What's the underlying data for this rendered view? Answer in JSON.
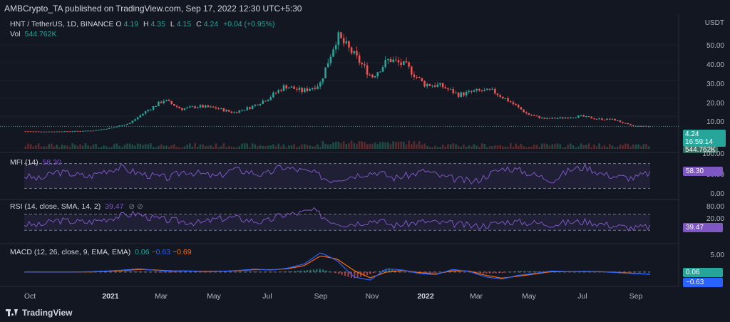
{
  "header": {
    "published": "AMBCrypto_TA published on TradingView.com, Sep 17, 2022 12:30 UTC+5:30"
  },
  "main_legend": {
    "symbol": "HNT / TetherUS, 1D, BINANCE",
    "o_label": "O",
    "o_value": "4.19",
    "h_label": "H",
    "h_value": "4.35",
    "l_label": "L",
    "l_value": "4.15",
    "c_label": "C",
    "c_value": "4.24",
    "change": "+0.04 (+0.95%)",
    "vol_label": "Vol",
    "vol_value": "544.762K"
  },
  "currency": "USDT",
  "price_axis": [
    "50.00",
    "40.00",
    "30.00",
    "20.00",
    "10.00"
  ],
  "price_tag": {
    "price": "4.24",
    "countdown": "16:59:14",
    "volume": "544.762K"
  },
  "mfi": {
    "label": "MFI (14)",
    "value": "58.30",
    "axis": [
      "100.00",
      "50.00",
      "0.00"
    ],
    "tag": "58.30"
  },
  "rsi": {
    "label": "RSI (14, close, SMA, 14, 2)",
    "value": "39.47",
    "icons": "⊘ ⊘",
    "axis": [
      "80.00",
      "20.00"
    ],
    "tag": "39.47"
  },
  "macd": {
    "label": "MACD (12, 26, close, 9, EMA, EMA)",
    "hist": "0.06",
    "macd": "−0.63",
    "signal": "−0.69",
    "axis": [
      "5.00",
      "0.00"
    ],
    "tag_hist": "0.06",
    "tag_macd": "−0.63"
  },
  "x_axis": [
    "Oct",
    "2021",
    "Mar",
    "May",
    "Jul",
    "Sep",
    "Nov",
    "2022",
    "Mar",
    "May",
    "Jul",
    "Sep"
  ],
  "footer": {
    "brand": "TradingView"
  },
  "colors": {
    "bg": "#131722",
    "up": "#26a69a",
    "down": "#ef5350",
    "mfi": "#7e57c2",
    "macd": "#2962ff",
    "signal": "#ff6d00"
  },
  "chart_data": [
    {
      "type": "line",
      "title": "HNT / TetherUS, 1D, BINANCE",
      "ylabel": "USDT",
      "ylim": [
        0,
        60
      ],
      "x": [
        "2020-09-20",
        "2020-10-15",
        "2020-11-15",
        "2020-12-15",
        "2021-01-15",
        "2021-02-15",
        "2021-03-10",
        "2021-04-05",
        "2021-04-25",
        "2021-05-15",
        "2021-06-05",
        "2021-07-01",
        "2021-07-25",
        "2021-08-20",
        "2021-09-10",
        "2021-09-30",
        "2021-10-20",
        "2021-11-01",
        "2021-11-10",
        "2021-11-25",
        "2021-12-10",
        "2021-12-25",
        "2022-01-10",
        "2022-01-25",
        "2022-02-10",
        "2022-03-01",
        "2022-03-25",
        "2022-04-15",
        "2022-05-01",
        "2022-05-15",
        "2022-06-01",
        "2022-06-20",
        "2022-07-10",
        "2022-07-30",
        "2022-08-20",
        "2022-09-05",
        "2022-09-17"
      ],
      "series": [
        {
          "values": [
            1.5,
            1.3,
            1.4,
            1.6,
            2.0,
            3.5,
            6.0,
            13.0,
            19.0,
            14.0,
            15.5,
            14.5,
            12.0,
            15.0,
            20.0,
            27.0,
            24.0,
            28.0,
            55.0,
            44.0,
            32.0,
            42.0,
            38.0,
            28.0,
            27.0,
            22.0,
            24.0,
            24.0,
            18.0,
            11.0,
            8.5,
            9.0,
            10.0,
            8.5,
            8.0,
            4.5,
            4.24
          ]
        }
      ]
    },
    {
      "type": "line",
      "title": "MFI (14)",
      "ylim": [
        0,
        100
      ],
      "series": [
        {
          "name": "MFI (14)",
          "values": [
            50,
            42,
            60,
            55,
            48,
            63,
            70,
            58,
            50,
            45,
            62,
            55,
            48,
            66,
            60,
            52,
            72,
            65,
            58,
            40,
            47,
            55,
            60,
            45,
            52,
            63,
            48,
            42,
            35,
            55,
            70,
            62,
            50,
            40,
            65,
            72,
            55,
            48,
            45,
            58.3
          ]
        }
      ]
    },
    {
      "type": "line",
      "title": "RSI (14, close, SMA, 14, 2)",
      "ylim": [
        0,
        100
      ],
      "series": [
        {
          "name": "RSI (14, close, SMA, 14, 2)",
          "values": [
            45,
            42,
            55,
            52,
            50,
            58,
            66,
            72,
            60,
            55,
            52,
            48,
            58,
            62,
            55,
            50,
            68,
            72,
            80,
            55,
            45,
            50,
            56,
            42,
            47,
            52,
            48,
            45,
            40,
            44,
            52,
            50,
            48,
            45,
            50,
            52,
            46,
            40,
            35,
            39.47
          ]
        }
      ]
    },
    {
      "type": "line",
      "title": "MACD (12, 26, close, 9, EMA, EMA)",
      "ylim": [
        -4,
        7
      ],
      "series": [
        {
          "name": "MACD",
          "values": [
            0,
            0,
            0,
            0,
            0.1,
            0.3,
            0.6,
            1.0,
            0.5,
            0.2,
            0.3,
            0.1,
            0.2,
            0.5,
            0.9,
            0.6,
            1.2,
            2.5,
            6.0,
            3.5,
            -1.5,
            -2.5,
            1.0,
            0.6,
            -0.5,
            -0.8,
            0.8,
            0.2,
            -1.5,
            -2.2,
            -1.0,
            -0.4,
            0.3,
            0.1,
            0.2,
            0.1,
            -0.2,
            -0.5,
            -0.63
          ]
        },
        {
          "name": "Signal",
          "values": [
            0,
            0,
            0,
            0,
            0.05,
            0.2,
            0.45,
            0.8,
            0.6,
            0.35,
            0.3,
            0.2,
            0.2,
            0.4,
            0.75,
            0.7,
            1.0,
            2.0,
            5.0,
            4.0,
            0.5,
            -1.8,
            0.0,
            0.5,
            -0.2,
            -0.6,
            0.4,
            0.3,
            -1.0,
            -1.9,
            -1.3,
            -0.6,
            0.1,
            0.1,
            0.15,
            0.1,
            -0.1,
            -0.4,
            -0.69
          ]
        }
      ]
    }
  ]
}
